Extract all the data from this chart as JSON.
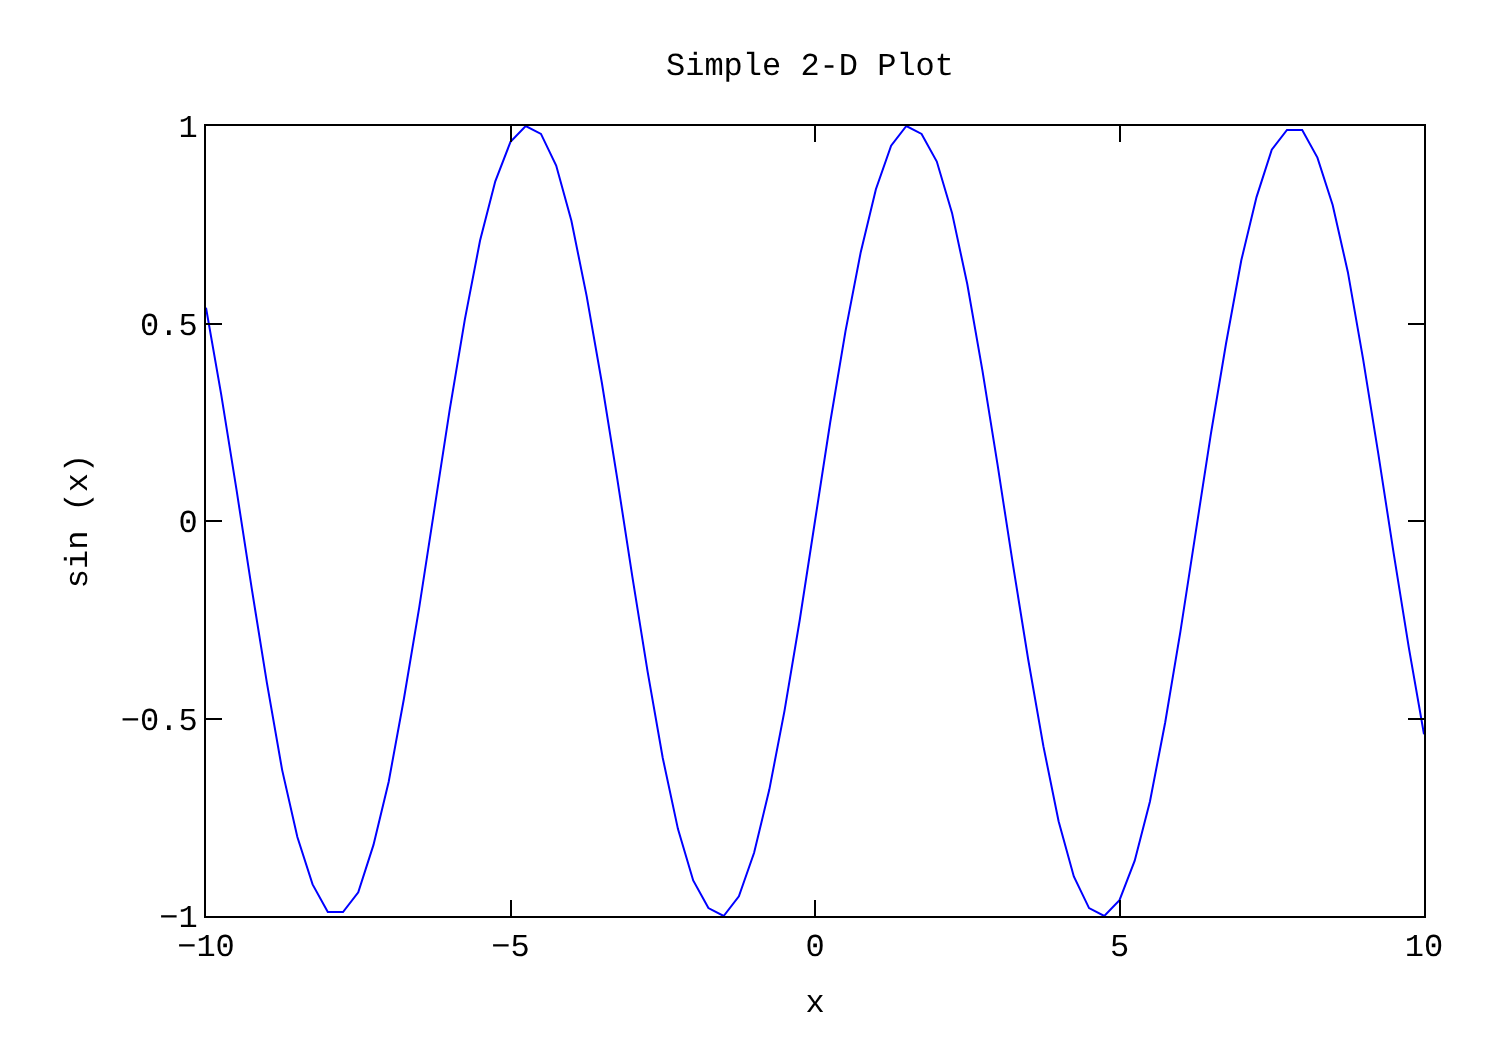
{
  "chart_data": {
    "type": "line",
    "title": "Simple 2-D Plot",
    "xlabel": "x",
    "ylabel": "sin (x)",
    "xlim": [
      -10,
      10
    ],
    "xticks": [
      {
        "value": -10,
        "label": "−10"
      },
      {
        "value": -5,
        "label": "−5"
      },
      0,
      5,
      10
    ],
    "ylim": [
      -1,
      1
    ],
    "yticks": [
      {
        "value": -1,
        "label": "−1"
      },
      {
        "value": -0.5,
        "label": "−0.5"
      },
      0,
      0.5,
      1
    ],
    "grid": false,
    "marker": "none",
    "line_style": "solid",
    "x": [
      -10,
      -9.75,
      -9.5,
      -9.25,
      -9,
      -8.75,
      -8.5,
      -8.25,
      -8,
      -7.75,
      -7.5,
      -7.25,
      -7,
      -6.75,
      -6.5,
      -6.25,
      -6,
      -5.75,
      -5.5,
      -5.25,
      -5,
      -4.75,
      -4.5,
      -4.25,
      -4,
      -3.75,
      -3.5,
      -3.25,
      -3,
      -2.75,
      -2.5,
      -2.25,
      -2,
      -1.75,
      -1.5,
      -1.25,
      -1,
      -0.75,
      -0.5,
      -0.25,
      0,
      0.25,
      0.5,
      0.75,
      1,
      1.25,
      1.5,
      1.75,
      2,
      2.25,
      2.5,
      2.75,
      3,
      3.25,
      3.5,
      3.75,
      4,
      4.25,
      4.5,
      4.75,
      5,
      5.25,
      5.5,
      5.75,
      6,
      6.25,
      6.5,
      6.75,
      7,
      7.25,
      7.5,
      7.75,
      8,
      8.25,
      8.5,
      8.75,
      9,
      9.25,
      9.5,
      9.75,
      10
    ],
    "series": [
      {
        "color": "#0000ff",
        "values": [
          0.54,
          0.32,
          0.08,
          -0.17,
          -0.41,
          -0.63,
          -0.8,
          -0.92,
          -0.99,
          -0.99,
          -0.94,
          -0.82,
          -0.66,
          -0.45,
          -0.22,
          0.03,
          0.28,
          0.51,
          0.71,
          0.86,
          0.96,
          1.0,
          0.98,
          0.9,
          0.76,
          0.57,
          0.35,
          0.11,
          -0.14,
          -0.38,
          -0.6,
          -0.78,
          -0.91,
          -0.98,
          -1.0,
          -0.95,
          -0.84,
          -0.68,
          -0.48,
          -0.25,
          0,
          0.25,
          0.48,
          0.68,
          0.84,
          0.95,
          1.0,
          0.98,
          0.91,
          0.78,
          0.6,
          0.38,
          0.14,
          -0.11,
          -0.35,
          -0.57,
          -0.76,
          -0.9,
          -0.98,
          -1.0,
          -0.96,
          -0.86,
          -0.71,
          -0.51,
          -0.28,
          -0.03,
          0.22,
          0.45,
          0.66,
          0.82,
          0.94,
          0.99,
          0.99,
          0.92,
          0.8,
          0.63,
          0.41,
          0.17,
          -0.08,
          -0.32,
          -0.54
        ]
      }
    ]
  }
}
